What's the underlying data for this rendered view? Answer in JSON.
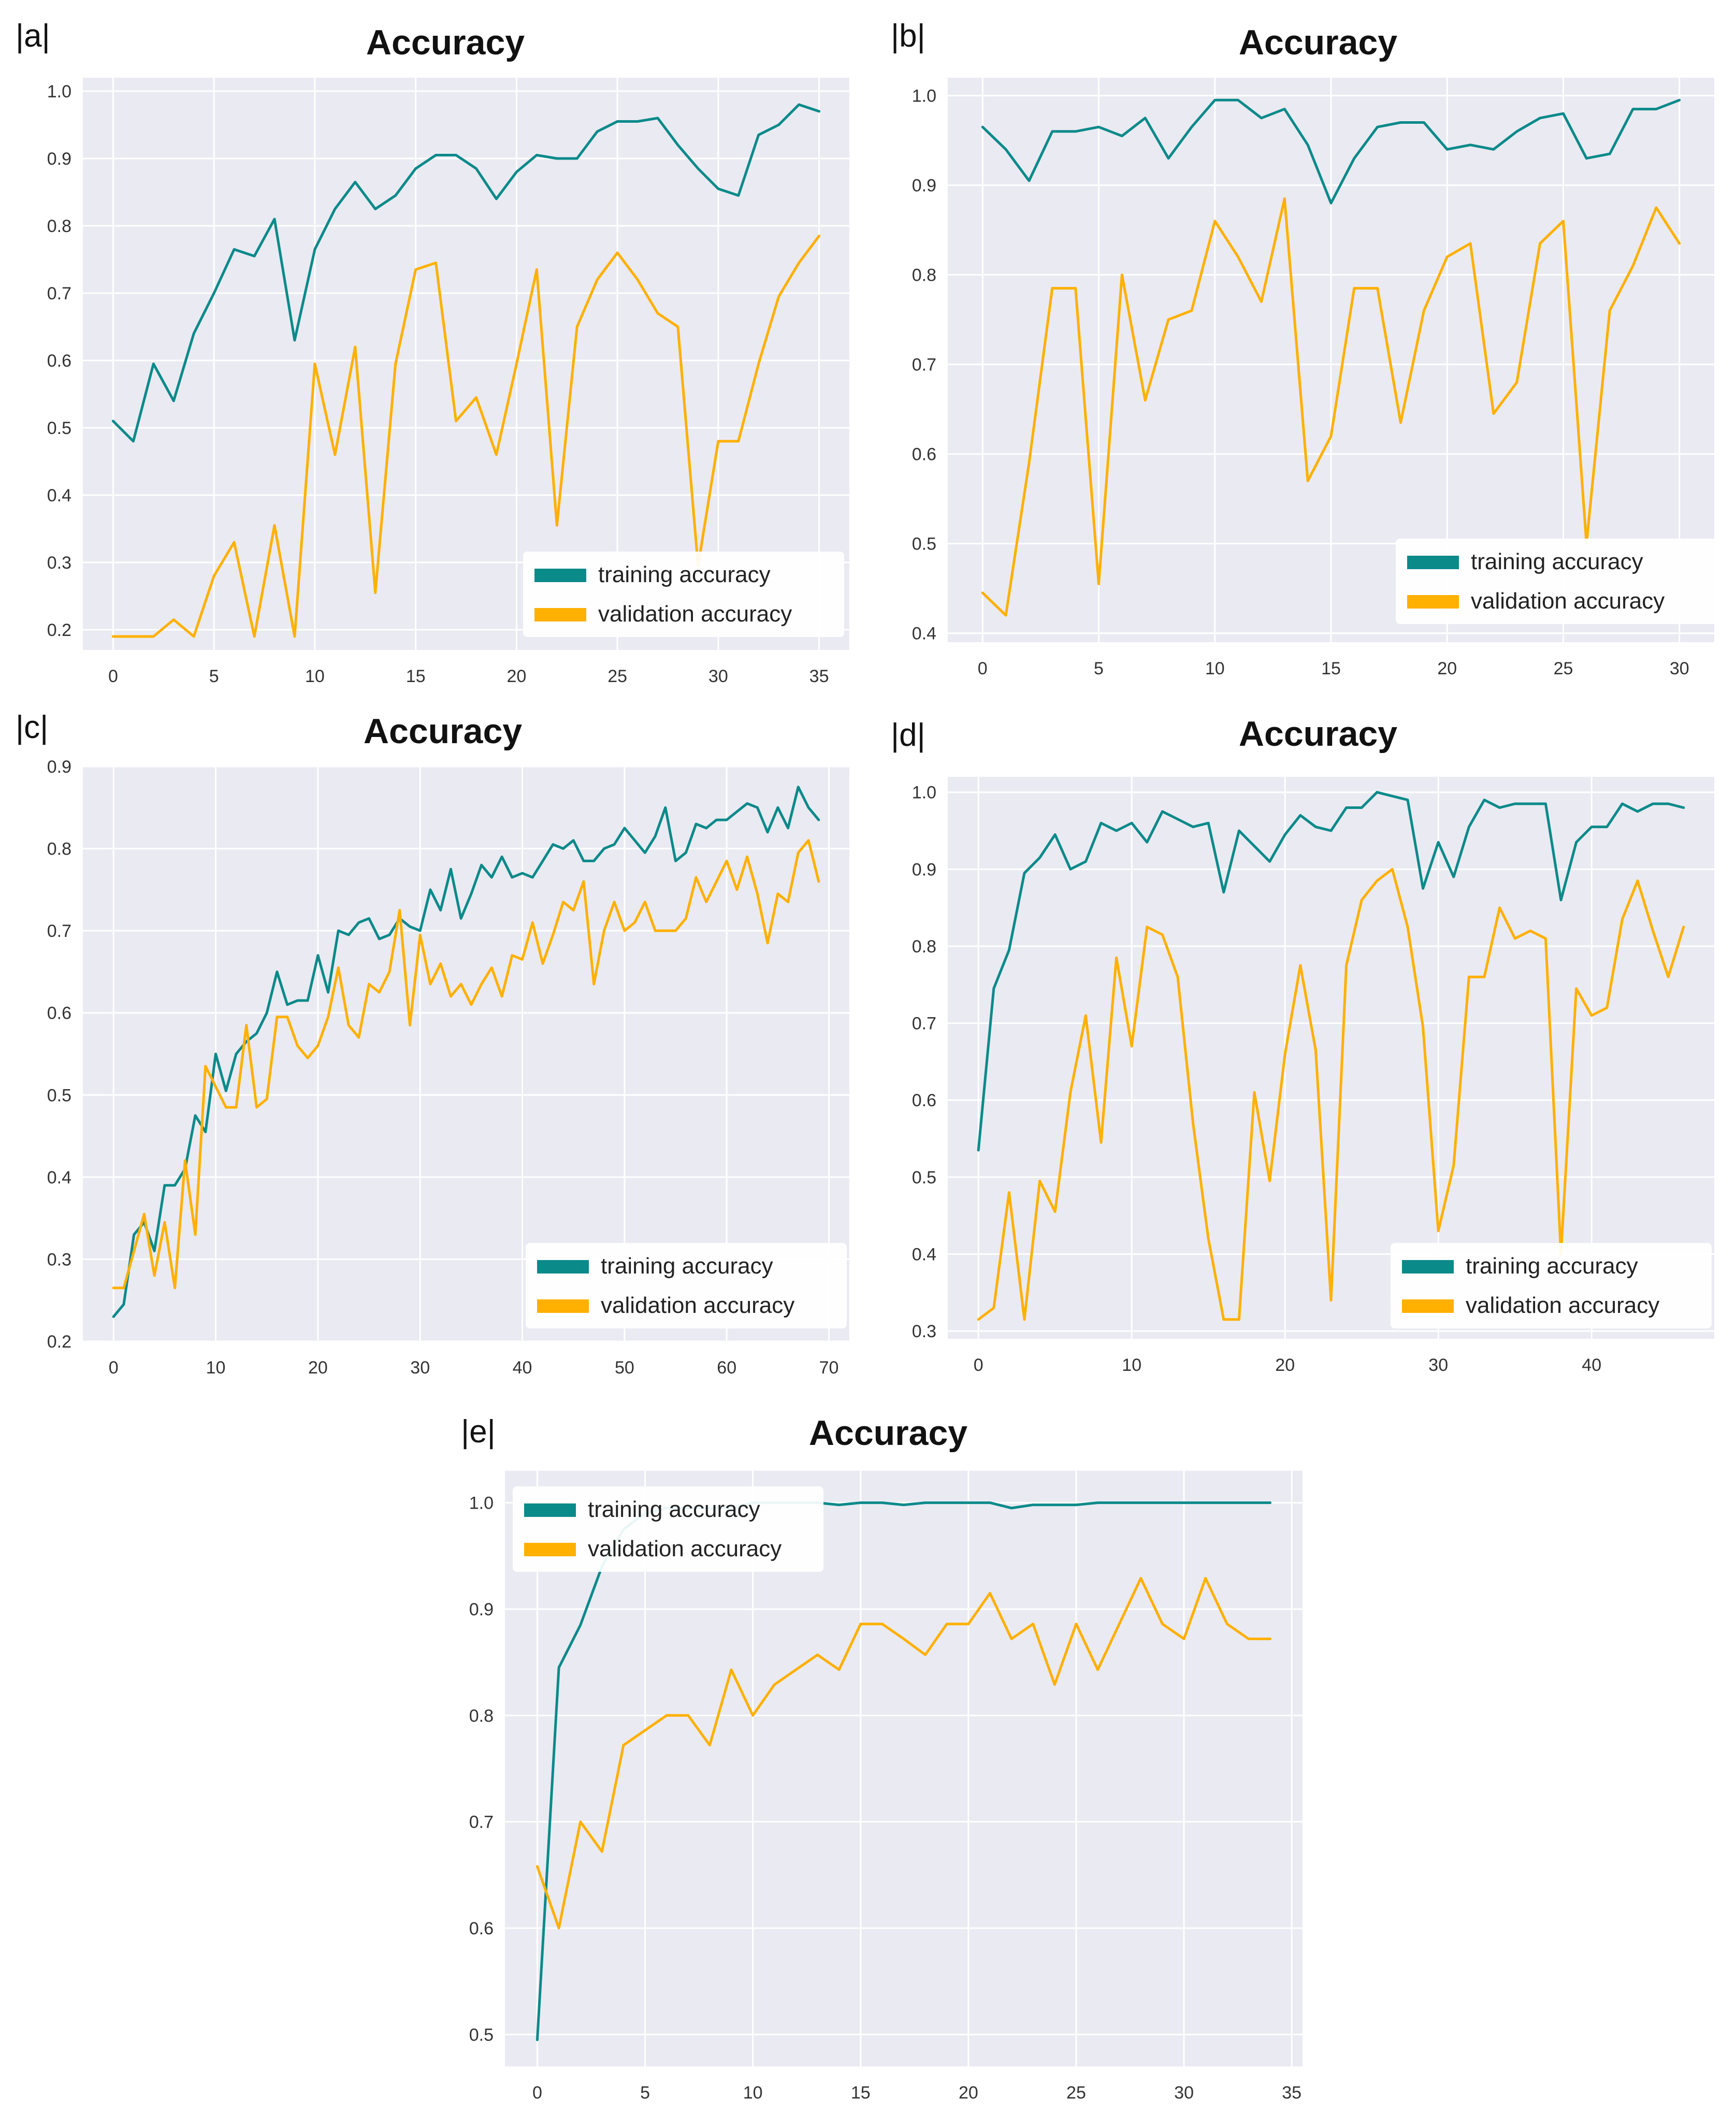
{
  "colors": {
    "training": "#0b8a8a",
    "validation": "#ffb000",
    "plot_bg": "#eaeaf2",
    "grid": "#ffffff"
  },
  "chart_data": [
    {
      "panel": "|a|",
      "type": "line",
      "title": "Accuracy",
      "xlabel": "",
      "ylabel": "",
      "xlim": [
        -1.5,
        36.5
      ],
      "ylim": [
        0.17,
        1.02
      ],
      "xticks": [
        0,
        5,
        10,
        15,
        20,
        25,
        30,
        35
      ],
      "yticks": [
        0.2,
        0.3,
        0.4,
        0.5,
        0.6,
        0.7,
        0.8,
        0.9,
        1.0
      ],
      "legend": "bottom-right",
      "grid": true,
      "series": [
        {
          "name": "training accuracy",
          "x_start": 0,
          "values": [
            0.51,
            0.48,
            0.595,
            0.54,
            0.64,
            0.7,
            0.765,
            0.755,
            0.81,
            0.63,
            0.765,
            0.825,
            0.865,
            0.825,
            0.845,
            0.885,
            0.905,
            0.905,
            0.885,
            0.84,
            0.88,
            0.905,
            0.9,
            0.9,
            0.94,
            0.955,
            0.955,
            0.96,
            0.92,
            0.885,
            0.855,
            0.845,
            0.935,
            0.95,
            0.98,
            0.97
          ]
        },
        {
          "name": "validation accuracy",
          "x_start": 0,
          "values": [
            0.19,
            0.19,
            0.19,
            0.215,
            0.19,
            0.28,
            0.33,
            0.19,
            0.355,
            0.19,
            0.595,
            0.46,
            0.62,
            0.255,
            0.595,
            0.735,
            0.745,
            0.51,
            0.545,
            0.46,
            0.595,
            0.735,
            0.355,
            0.65,
            0.72,
            0.76,
            0.72,
            0.67,
            0.65,
            0.295,
            0.48,
            0.48,
            0.595,
            0.695,
            0.745,
            0.785
          ]
        }
      ]
    },
    {
      "panel": "|b|",
      "type": "line",
      "title": "Accuracy",
      "xlabel": "",
      "ylabel": "",
      "xlim": [
        -1.5,
        31.5
      ],
      "ylim": [
        0.39,
        1.02
      ],
      "xticks": [
        0,
        5,
        10,
        15,
        20,
        25,
        30
      ],
      "yticks": [
        0.4,
        0.5,
        0.6,
        0.7,
        0.8,
        0.9,
        1.0
      ],
      "legend": "bottom-right",
      "grid": true,
      "series": [
        {
          "name": "training accuracy",
          "x_start": 0,
          "values": [
            0.965,
            0.94,
            0.905,
            0.96,
            0.96,
            0.965,
            0.955,
            0.975,
            0.93,
            0.965,
            0.995,
            0.995,
            0.975,
            0.985,
            0.945,
            0.88,
            0.93,
            0.965,
            0.97,
            0.97,
            0.94,
            0.945,
            0.94,
            0.96,
            0.975,
            0.98,
            0.93,
            0.935,
            0.985,
            0.985,
            0.995
          ]
        },
        {
          "name": "validation accuracy",
          "x_start": 0,
          "values": [
            0.445,
            0.42,
            0.59,
            0.785,
            0.785,
            0.455,
            0.8,
            0.66,
            0.75,
            0.76,
            0.86,
            0.82,
            0.77,
            0.885,
            0.57,
            0.62,
            0.785,
            0.785,
            0.635,
            0.76,
            0.82,
            0.835,
            0.645,
            0.68,
            0.835,
            0.86,
            0.5,
            0.76,
            0.81,
            0.875,
            0.835
          ]
        }
      ]
    },
    {
      "panel": "|c|",
      "type": "line",
      "title": "Accuracy",
      "xlabel": "",
      "ylabel": "",
      "xlim": [
        -3,
        72
      ],
      "ylim": [
        0.2,
        0.9
      ],
      "xticks": [
        0,
        10,
        20,
        30,
        40,
        50,
        60,
        70
      ],
      "yticks": [
        0.2,
        0.3,
        0.4,
        0.5,
        0.6,
        0.7,
        0.8,
        0.9
      ],
      "legend": "bottom-right",
      "grid": true,
      "series": [
        {
          "name": "training accuracy",
          "x_start": 0,
          "values": [
            0.23,
            0.245,
            0.33,
            0.345,
            0.31,
            0.39,
            0.39,
            0.41,
            0.475,
            0.455,
            0.55,
            0.505,
            0.55,
            0.565,
            0.575,
            0.6,
            0.65,
            0.61,
            0.615,
            0.615,
            0.67,
            0.625,
            0.7,
            0.695,
            0.71,
            0.715,
            0.69,
            0.695,
            0.715,
            0.705,
            0.7,
            0.75,
            0.725,
            0.775,
            0.715,
            0.745,
            0.78,
            0.765,
            0.79,
            0.765,
            0.77,
            0.765,
            0.785,
            0.805,
            0.8,
            0.81,
            0.785,
            0.785,
            0.8,
            0.805,
            0.825,
            0.81,
            0.795,
            0.815,
            0.85,
            0.785,
            0.795,
            0.83,
            0.825,
            0.835,
            0.835,
            0.845,
            0.855,
            0.85,
            0.82,
            0.85,
            0.825,
            0.875,
            0.85,
            0.835
          ]
        },
        {
          "name": "validation accuracy",
          "x_start": 0,
          "values": [
            0.265,
            0.265,
            0.31,
            0.355,
            0.28,
            0.345,
            0.265,
            0.42,
            0.33,
            0.535,
            0.51,
            0.485,
            0.485,
            0.585,
            0.485,
            0.495,
            0.595,
            0.595,
            0.56,
            0.545,
            0.56,
            0.595,
            0.655,
            0.585,
            0.57,
            0.635,
            0.625,
            0.65,
            0.725,
            0.585,
            0.695,
            0.635,
            0.66,
            0.62,
            0.635,
            0.61,
            0.635,
            0.655,
            0.62,
            0.67,
            0.665,
            0.71,
            0.66,
            0.695,
            0.735,
            0.725,
            0.76,
            0.635,
            0.7,
            0.735,
            0.7,
            0.71,
            0.735,
            0.7,
            0.7,
            0.7,
            0.715,
            0.765,
            0.735,
            0.76,
            0.785,
            0.75,
            0.79,
            0.745,
            0.685,
            0.745,
            0.735,
            0.795,
            0.81,
            0.76
          ]
        }
      ]
    },
    {
      "panel": "|d|",
      "type": "line",
      "title": "Accuracy",
      "xlabel": "",
      "ylabel": "",
      "xlim": [
        -2,
        48
      ],
      "ylim": [
        0.29,
        1.02
      ],
      "xticks": [
        0,
        10,
        20,
        30,
        40
      ],
      "yticks": [
        0.3,
        0.4,
        0.5,
        0.6,
        0.7,
        0.8,
        0.9,
        1.0
      ],
      "legend": "bottom-right",
      "grid": true,
      "series": [
        {
          "name": "training accuracy",
          "x_start": 0,
          "values": [
            0.535,
            0.745,
            0.795,
            0.895,
            0.915,
            0.945,
            0.9,
            0.91,
            0.96,
            0.95,
            0.96,
            0.935,
            0.975,
            0.965,
            0.955,
            0.96,
            0.87,
            0.95,
            0.93,
            0.91,
            0.945,
            0.97,
            0.955,
            0.95,
            0.98,
            0.98,
            1.0,
            0.995,
            0.99,
            0.875,
            0.935,
            0.89,
            0.955,
            0.99,
            0.98,
            0.985,
            0.985,
            0.985,
            0.86,
            0.935,
            0.955,
            0.955,
            0.985,
            0.975,
            0.985,
            0.985,
            0.98
          ]
        },
        {
          "name": "validation accuracy",
          "x_start": 0,
          "values": [
            0.315,
            0.33,
            0.48,
            0.315,
            0.495,
            0.455,
            0.61,
            0.71,
            0.545,
            0.785,
            0.67,
            0.825,
            0.815,
            0.76,
            0.57,
            0.42,
            0.315,
            0.315,
            0.61,
            0.495,
            0.66,
            0.775,
            0.665,
            0.34,
            0.775,
            0.86,
            0.885,
            0.9,
            0.825,
            0.695,
            0.43,
            0.515,
            0.76,
            0.76,
            0.85,
            0.81,
            0.82,
            0.81,
            0.4,
            0.745,
            0.71,
            0.72,
            0.835,
            0.885,
            0.82,
            0.76,
            0.825
          ]
        }
      ]
    },
    {
      "panel": "|e|",
      "type": "line",
      "title": "Accuracy",
      "xlabel": "",
      "ylabel": "",
      "xlim": [
        -1.5,
        35.5
      ],
      "ylim": [
        0.47,
        1.03
      ],
      "xticks": [
        0,
        5,
        10,
        15,
        20,
        25,
        30,
        35
      ],
      "yticks": [
        0.5,
        0.6,
        0.7,
        0.8,
        0.9,
        1.0
      ],
      "legend": "top-left",
      "grid": true,
      "series": [
        {
          "name": "training accuracy",
          "x_start": 0,
          "values": [
            0.495,
            0.845,
            0.885,
            0.94,
            0.975,
            0.99,
            0.995,
            0.995,
            0.995,
            0.995,
            1.0,
            1.0,
            1.0,
            1.0,
            0.998,
            1.0,
            1.0,
            0.998,
            1.0,
            1.0,
            1.0,
            1.0,
            0.995,
            0.998,
            0.998,
            0.998,
            1.0,
            1.0,
            1.0,
            1.0,
            1.0,
            1.0,
            1.0,
            1.0,
            1.0
          ]
        },
        {
          "name": "validation accuracy",
          "x_start": 0,
          "values": [
            0.658,
            0.6,
            0.7,
            0.672,
            0.772,
            0.786,
            0.8,
            0.8,
            0.772,
            0.843,
            0.8,
            0.829,
            0.843,
            0.857,
            0.843,
            0.886,
            0.886,
            0.872,
            0.857,
            0.886,
            0.886,
            0.915,
            0.872,
            0.886,
            0.829,
            0.886,
            0.843,
            0.886,
            0.929,
            0.886,
            0.872,
            0.929,
            0.886,
            0.872,
            0.872
          ]
        }
      ]
    }
  ]
}
